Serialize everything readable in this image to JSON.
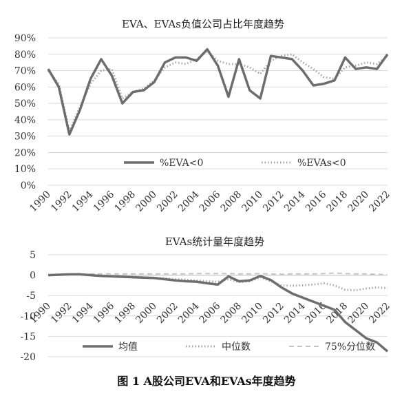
{
  "caption": "图 1  A股公司EVA和EVAs年度趋势",
  "colors": {
    "solid": "#6d6d6d",
    "dotted": "#a6a6a6",
    "dashed": "#c4c4c4",
    "grid": "#d9d9d9",
    "text": "#333333"
  },
  "chart_data": [
    {
      "type": "line",
      "title": "EVA、EVAs负值公司占比年度趋势",
      "x": [
        1990,
        1991,
        1992,
        1993,
        1994,
        1995,
        1996,
        1997,
        1998,
        1999,
        2000,
        2001,
        2002,
        2003,
        2004,
        2005,
        2006,
        2007,
        2008,
        2009,
        2010,
        2011,
        2012,
        2013,
        2014,
        2015,
        2016,
        2017,
        2018,
        2019,
        2020,
        2021,
        2022
      ],
      "x_tick_labels": [
        "1990",
        "1992",
        "1994",
        "1996",
        "1998",
        "2000",
        "2002",
        "2004",
        "2006",
        "2008",
        "2010",
        "2012",
        "2014",
        "2016",
        "2018",
        "2020",
        "2022"
      ],
      "y_tick_labels": [
        "0%",
        "10%",
        "20%",
        "30%",
        "40%",
        "50%",
        "60%",
        "70%",
        "80%",
        "90%"
      ],
      "ylim": [
        0,
        90
      ],
      "grid": true,
      "legend_position": "bottom-center inside plot",
      "series": [
        {
          "name": "%EVA<0",
          "style": "solid",
          "values": [
            71,
            60,
            31,
            46,
            65,
            77,
            67,
            50,
            57,
            58,
            63,
            75,
            78,
            78,
            76,
            83,
            73,
            54,
            77,
            58,
            53,
            79,
            78,
            77,
            70,
            61,
            62,
            64,
            78,
            71,
            72,
            71,
            80
          ]
        },
        {
          "name": "%EVAs<0",
          "style": "dotted",
          "values": [
            70,
            62,
            33,
            48,
            62,
            70,
            71,
            53,
            57,
            59,
            64,
            72,
            75,
            74,
            77,
            82,
            76,
            74,
            74,
            72,
            68,
            76,
            79,
            80,
            75,
            71,
            66,
            65,
            72,
            73,
            75,
            74,
            79
          ]
        }
      ]
    },
    {
      "type": "line",
      "title": "EVAs统计量年度趋势",
      "x": [
        1990,
        1991,
        1992,
        1993,
        1994,
        1995,
        1996,
        1997,
        1998,
        1999,
        2000,
        2001,
        2002,
        2003,
        2004,
        2005,
        2006,
        2007,
        2008,
        2009,
        2010,
        2011,
        2012,
        2013,
        2014,
        2015,
        2016,
        2017,
        2018,
        2019,
        2020,
        2021,
        2022
      ],
      "x_tick_labels": [
        "1990",
        "1992",
        "1994",
        "1996",
        "1998",
        "2000",
        "2002",
        "2004",
        "2006",
        "2008",
        "2010",
        "2012",
        "2014",
        "2016",
        "2018",
        "2020",
        "2022"
      ],
      "y_tick_labels": [
        "5",
        "0",
        "-5",
        "-10",
        "-15",
        "-20"
      ],
      "ylim": [
        -20,
        5
      ],
      "grid": true,
      "legend_position": "bottom",
      "series": [
        {
          "name": "均值",
          "style": "solid",
          "values": [
            0,
            0.1,
            0.2,
            0.2,
            0,
            -0.2,
            -0.3,
            -0.4,
            -0.5,
            -0.6,
            -0.7,
            -1,
            -1.3,
            -1.5,
            -1.6,
            -2,
            -2.3,
            -0.3,
            -1.5,
            -1.3,
            -0.2,
            -1.2,
            -3,
            -4.5,
            -5.5,
            -6.5,
            -7.5,
            -8.5,
            -11.5,
            -13.5,
            -15.5,
            -16.5,
            -18.7
          ]
        },
        {
          "name": "中位数",
          "style": "dotted",
          "values": [
            0,
            0.1,
            0.2,
            0.2,
            0.1,
            0,
            -0.2,
            -0.3,
            -0.4,
            -0.5,
            -0.6,
            -0.8,
            -1,
            -1.1,
            -1.3,
            -1.5,
            -1.6,
            -1,
            -1.7,
            -1.5,
            -0.5,
            -1.5,
            -2.5,
            -2.6,
            -2.5,
            -2.3,
            -2,
            -2.5,
            -3.6,
            -3.7,
            -3.3,
            -3,
            -3.2
          ]
        },
        {
          "name": "75%分位数",
          "style": "dashed",
          "values": [
            0,
            0.1,
            0.2,
            0.2,
            0.3,
            0.3,
            0.3,
            0.3,
            0.3,
            0.3,
            0.3,
            0.3,
            0.3,
            0.3,
            0.4,
            0.4,
            0.4,
            0.4,
            0.3,
            0.3,
            0.4,
            0.3,
            0.2,
            0.3,
            0.3,
            0.3,
            0.4,
            0.5,
            0.4,
            0.3,
            0.3,
            0.2,
            0.1
          ]
        }
      ]
    }
  ]
}
